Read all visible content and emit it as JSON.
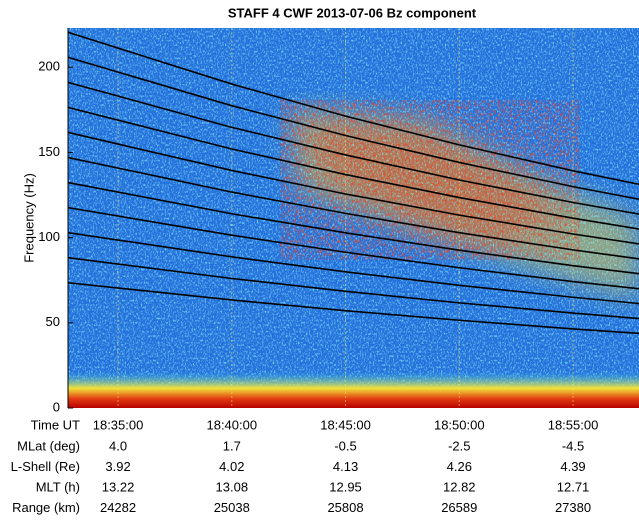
{
  "chart_data": {
    "type": "spectrogram",
    "title": "STAFF 4 CWF 2013-07-06 Bz component",
    "ylabel": "Frequency (Hz)",
    "xlabel": "Time UT",
    "ylim": [
      0,
      223
    ],
    "yticks": [
      0,
      50,
      100,
      150,
      200
    ],
    "xlim": [
      66768,
      68274
    ],
    "xticks": [
      {
        "value": 66900,
        "label": "18:35:00"
      },
      {
        "value": 67200,
        "label": "18:40:00"
      },
      {
        "value": 67500,
        "label": "18:45:00"
      },
      {
        "value": 67800,
        "label": "18:50:00"
      },
      {
        "value": 68100,
        "label": "18:55:00"
      }
    ],
    "grid": true,
    "x": [
      66768,
      67200,
      67500,
      67800,
      68100,
      68274
    ],
    "series": [
      {
        "color": "#000000",
        "values": [
          73.5,
          63.4,
          57.1,
          51.5,
          46.4,
          43.8
        ]
      },
      {
        "color": "#000000",
        "values": [
          88.2,
          76.0,
          68.5,
          61.7,
          55.7,
          52.5
        ]
      },
      {
        "color": "#000000",
        "values": [
          102.9,
          88.7,
          79.9,
          72.0,
          65.0,
          61.3
        ]
      },
      {
        "color": "#000000",
        "values": [
          117.6,
          101.4,
          91.4,
          82.3,
          74.2,
          70.0
        ]
      },
      {
        "color": "#000000",
        "values": [
          132.3,
          114.0,
          102.8,
          92.6,
          83.5,
          78.8
        ]
      },
      {
        "color": "#000000",
        "values": [
          147.0,
          126.7,
          114.2,
          102.9,
          92.8,
          87.5
        ]
      },
      {
        "color": "#000000",
        "values": [
          161.7,
          139.4,
          125.6,
          113.2,
          102.1,
          96.3
        ]
      },
      {
        "color": "#000000",
        "values": [
          176.4,
          152.0,
          137.0,
          123.5,
          111.4,
          105.0
        ]
      },
      {
        "color": "#000000",
        "values": [
          191.1,
          164.7,
          148.5,
          133.8,
          120.6,
          113.8
        ]
      },
      {
        "color": "#000000",
        "values": [
          205.8,
          177.4,
          159.9,
          144.1,
          129.9,
          122.5
        ]
      },
      {
        "color": "#000000",
        "values": [
          220.5,
          190.1,
          171.3,
          154.4,
          139.2,
          131.3
        ]
      }
    ],
    "ephemeris": [
      {
        "label": "MLat (deg)",
        "values": [
          "4.0",
          "1.7",
          "-0.5",
          "-2.5",
          "-4.5"
        ]
      },
      {
        "label": "L-Shell (Re)",
        "values": [
          "3.92",
          "4.02",
          "4.13",
          "4.26",
          "4.39"
        ]
      },
      {
        "label": "MLT (h)",
        "values": [
          "13.22",
          "13.08",
          "12.95",
          "12.82",
          "12.71"
        ]
      },
      {
        "label": "Range (km)",
        "values": [
          "24282",
          "25038",
          "25808",
          "26589",
          "27380"
        ]
      }
    ]
  }
}
